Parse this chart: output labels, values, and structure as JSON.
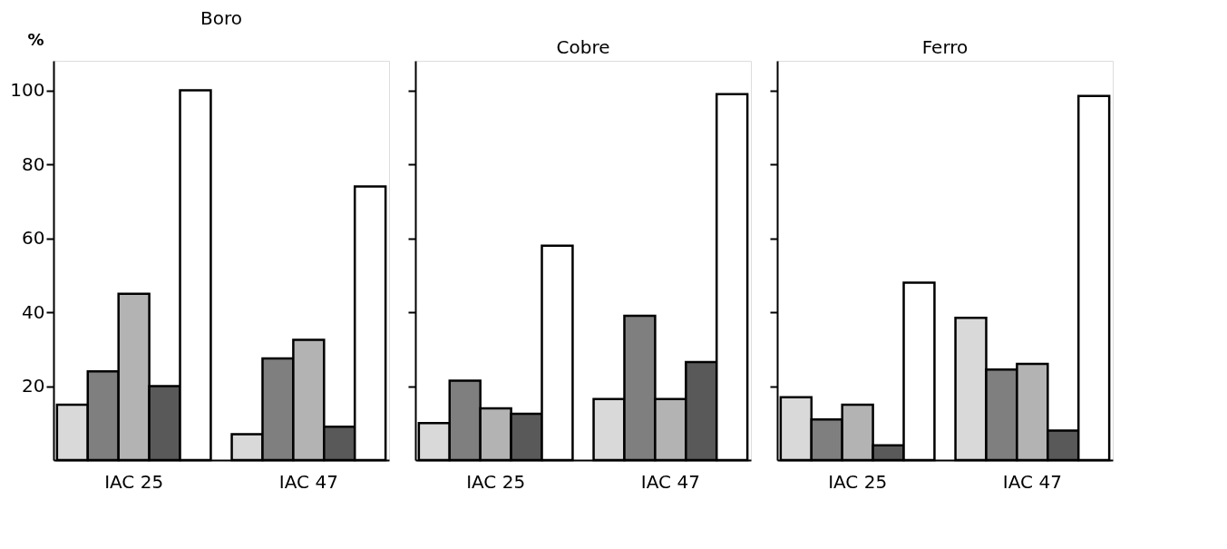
{
  "chart_data": [
    {
      "type": "bar",
      "title": "Boro",
      "ylabel": "%",
      "categories": [
        "IAC 25",
        "IAC 47"
      ],
      "ylim": [
        0,
        108
      ],
      "yticks": [
        20,
        40,
        60,
        80,
        100
      ],
      "grid": false,
      "legend": false,
      "series": [
        {
          "color": "#d9d9d9",
          "values": [
            15,
            7
          ]
        },
        {
          "color": "#7f7f7f",
          "values": [
            24,
            27.5
          ]
        },
        {
          "color": "#b3b3b3",
          "values": [
            45,
            32.5
          ]
        },
        {
          "color": "#595959",
          "values": [
            20,
            9
          ]
        },
        {
          "color": "#ffffff",
          "values": [
            100,
            74
          ]
        }
      ]
    },
    {
      "type": "bar",
      "title": "Cobre",
      "categories": [
        "IAC 25",
        "IAC 47"
      ],
      "ylim": [
        0,
        108
      ],
      "yticks": [
        {
          "value": 20,
          "label": null
        },
        {
          "value": 40,
          "label": null
        },
        {
          "value": 60,
          "label": null
        },
        {
          "value": 80,
          "label": null
        },
        {
          "value": 100,
          "label": null
        }
      ],
      "tick_labels": "x",
      "grid": false,
      "legend": false,
      "series": [
        {
          "color": "#d9d9d9",
          "values": [
            10,
            16.5
          ]
        },
        {
          "color": "#7f7f7f",
          "values": [
            21.5,
            39
          ]
        },
        {
          "color": "#b3b3b3",
          "values": [
            14,
            16.5
          ]
        },
        {
          "color": "#595959",
          "values": [
            12.5,
            26.5
          ]
        },
        {
          "color": "#ffffff",
          "values": [
            58,
            99
          ]
        }
      ]
    },
    {
      "type": "bar",
      "title": "Ferro",
      "categories": [
        "IAC 25",
        "IAC 47"
      ],
      "ylim": [
        0,
        108
      ],
      "yticks": [
        {
          "value": 20,
          "label": null
        },
        {
          "value": 40,
          "label": null
        },
        {
          "value": 60,
          "label": null
        },
        {
          "value": 80,
          "label": null
        },
        {
          "value": 100,
          "label": null
        }
      ],
      "tick_labels": "x",
      "grid": false,
      "legend": false,
      "series": [
        {
          "color": "#d9d9d9",
          "values": [
            17,
            38.5
          ]
        },
        {
          "color": "#7f7f7f",
          "values": [
            11,
            24.5
          ]
        },
        {
          "color": "#b3b3b3",
          "values": [
            15,
            26
          ]
        },
        {
          "color": "#595959",
          "values": [
            4,
            8
          ]
        },
        {
          "color": "#ffffff",
          "values": [
            48,
            98.5
          ]
        }
      ]
    }
  ]
}
